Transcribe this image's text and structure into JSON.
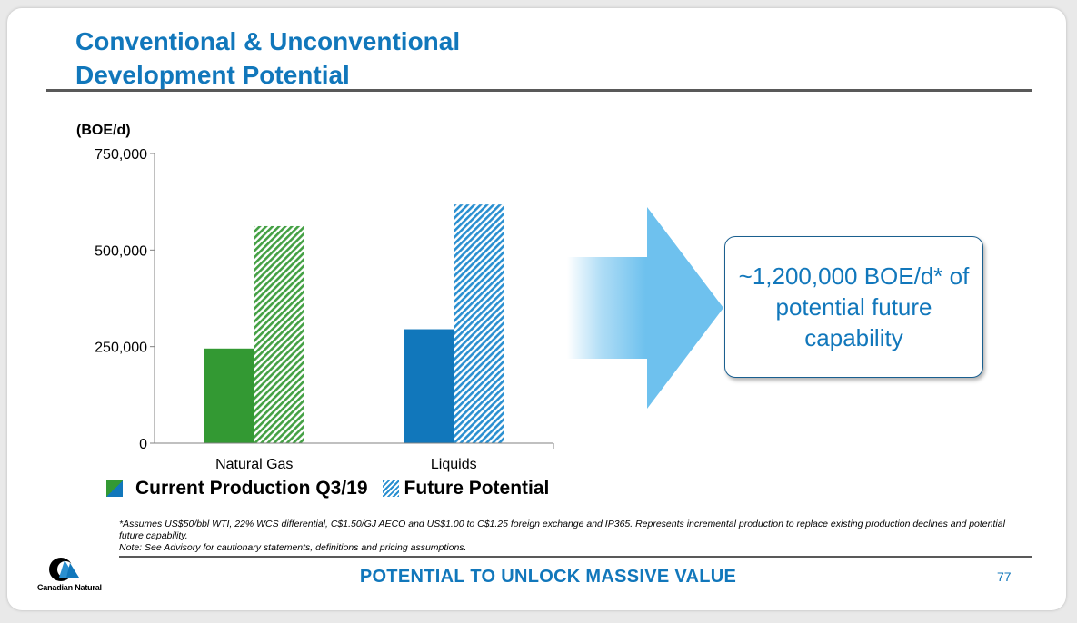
{
  "title": {
    "line1": "Conventional & Unconventional",
    "line2": "Development Potential"
  },
  "unit_label": "(BOE/d)",
  "chart_data": {
    "type": "bar",
    "categories": [
      "Natural Gas",
      "Liquids"
    ],
    "series": [
      {
        "name": "Current Production Q3/19",
        "values": [
          245000,
          295000
        ]
      },
      {
        "name": "Future Potential",
        "values": [
          562000,
          618000
        ]
      }
    ],
    "ylabel": "(BOE/d)",
    "ylim": [
      0,
      750000
    ],
    "yticks": [
      0,
      250000,
      500000,
      750000
    ],
    "ytick_labels": [
      "0",
      "250,000",
      "500,000",
      "750,000"
    ],
    "category_colors": [
      "#339933",
      "#1177bb"
    ],
    "future_colors": [
      "#44a044",
      "#2a8fd0"
    ],
    "legend_position": "bottom-left"
  },
  "legend": {
    "current_label": "Current Production Q3/19",
    "future_label": "Future Potential"
  },
  "callout": {
    "text": "~1,200,000 BOE/d* of potential future capability"
  },
  "footnote": {
    "line1": "*Assumes US$50/bbl WTI, 22% WCS differential, C$1.50/GJ AECO and US$1.00 to C$1.25 foreign exchange and IP365. Represents incremental production to replace existing production declines and potential future capability.",
    "line2": "Note: See Advisory for cautionary statements, definitions and pricing assumptions."
  },
  "tagline": "POTENTIAL TO UNLOCK MASSIVE VALUE",
  "page_number": "77",
  "logo": {
    "text": "Canadian Natural"
  },
  "colors": {
    "accent": "#1177bb",
    "green": "#339933",
    "rule": "#595959"
  }
}
